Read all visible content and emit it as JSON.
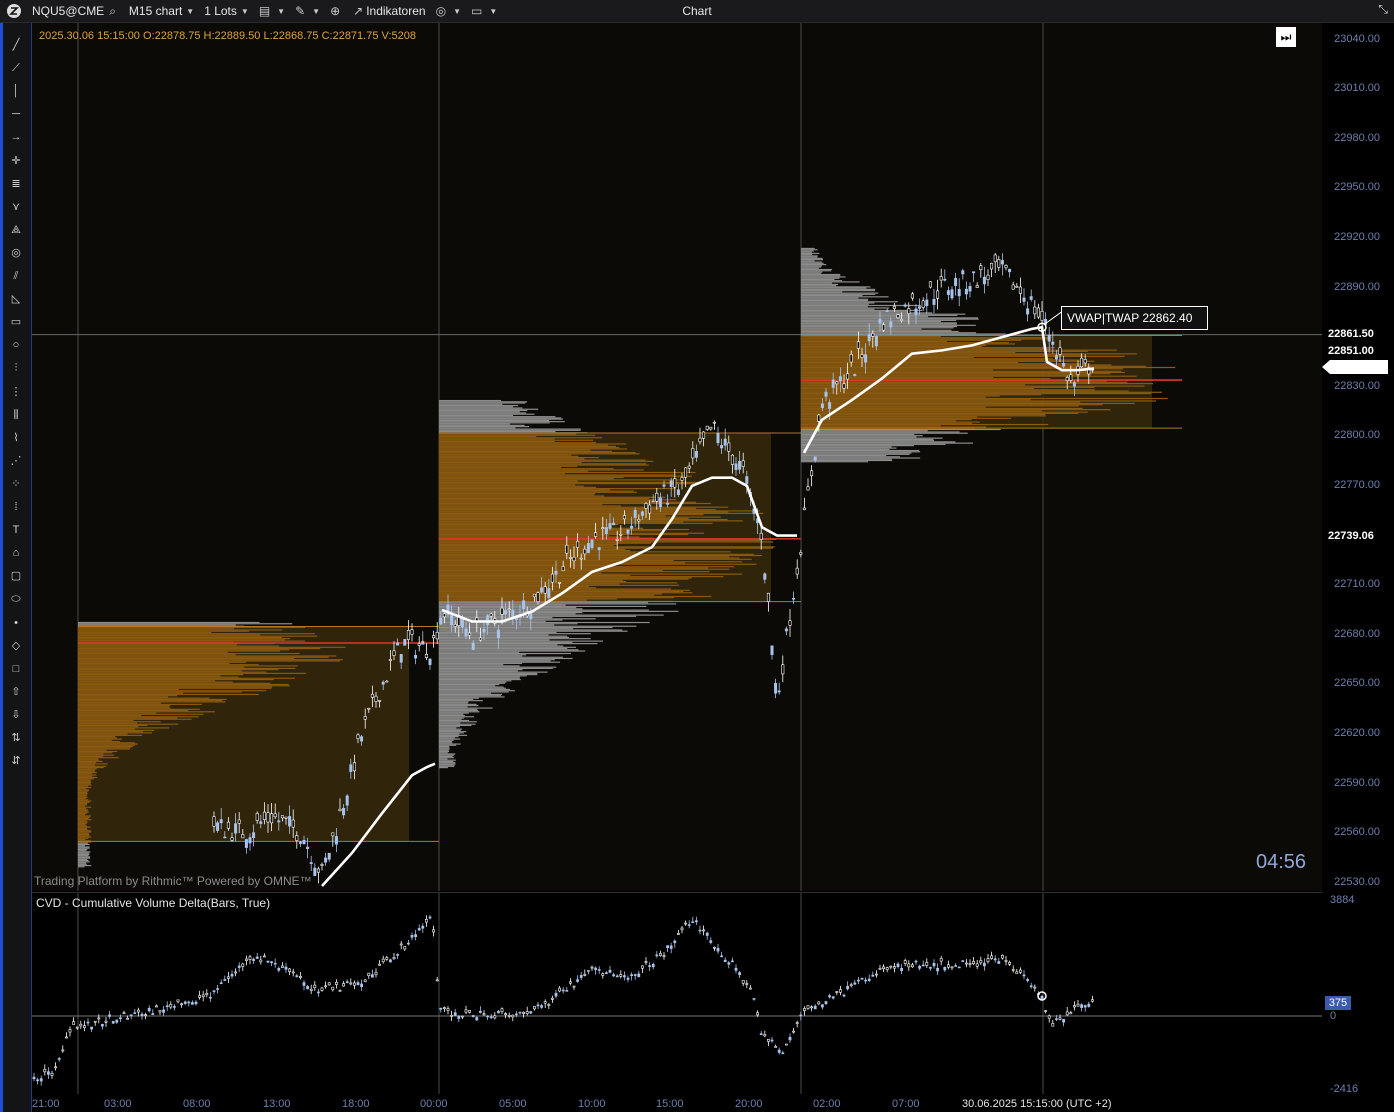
{
  "toolbar": {
    "symbol": "NQU5@CME",
    "timeframe": "M15 chart",
    "lots": "1 Lots",
    "indicators": "Indikatoren",
    "window_title": "Chart"
  },
  "ohlc_line": "2025.30.06 15:15:00 O:22878.75 H:22889.50 L:22868.75 C:22871.75 V:5208",
  "price_axis": {
    "ticks": [
      "23040.00",
      "23010.00",
      "22980.00",
      "22950.00",
      "22920.00",
      "22890.00",
      "22830.00",
      "22800.00",
      "22770.00",
      "22710.00",
      "22680.00",
      "22650.00",
      "22620.00",
      "22590.00",
      "22560.00",
      "22530.00"
    ],
    "highlight_ticks": [
      "22861.50",
      "22851.00",
      "22739.06"
    ],
    "range": [
      22525,
      23050
    ]
  },
  "vwap_label": "VWAP|TWAP 22862.40",
  "watermark": "Trading Platform by Rithmic™   Powered by OMNE™",
  "countdown": "04:56",
  "cvd": {
    "title": "CVD - Cumulative Volume Delta(Bars, True)",
    "max": "3884",
    "min": "-2416",
    "current": "375",
    "zero": "0"
  },
  "time_axis": {
    "ticks": [
      "21:00",
      "03:00",
      "08:00",
      "13:00",
      "18:00",
      "00:00",
      "05:00",
      "10:00",
      "15:00",
      "20:00",
      "02:00",
      "07:00"
    ],
    "current": "30.06.2025 15:15:00 (UTC +2)"
  },
  "colors": {
    "profile_value_area": "#8a5a10",
    "profile_outside": "#9a9a9a",
    "poc": "#d63a2a",
    "vwap": "#ffffff",
    "candle_up": "#a9c4ea",
    "candle_down": "#ffffff",
    "axis_text": "#6f7fae"
  },
  "tools": [
    "line-icon",
    "ray-icon",
    "vertical-line-icon",
    "horizontal-line-icon",
    "arrow-icon",
    "crosshair-icon",
    "fib-icon",
    "pitchfork-icon",
    "gann-icon",
    "spiral-icon",
    "channel-icon",
    "triangle-icon",
    "rectangle-icon",
    "ellipse-icon",
    "fib-ext-icon",
    "fib-fan-icon",
    "volume-icon",
    "elliott-icon",
    "zigzag-icon",
    "pattern-icon",
    "measure-icon",
    "text-icon",
    "tag-icon",
    "callout-icon",
    "label-icon",
    "dot-icon",
    "diamond-icon",
    "square-icon",
    "arrow-up-icon",
    "arrow-down-icon",
    "sort-asc-icon",
    "sort-desc-icon"
  ]
}
